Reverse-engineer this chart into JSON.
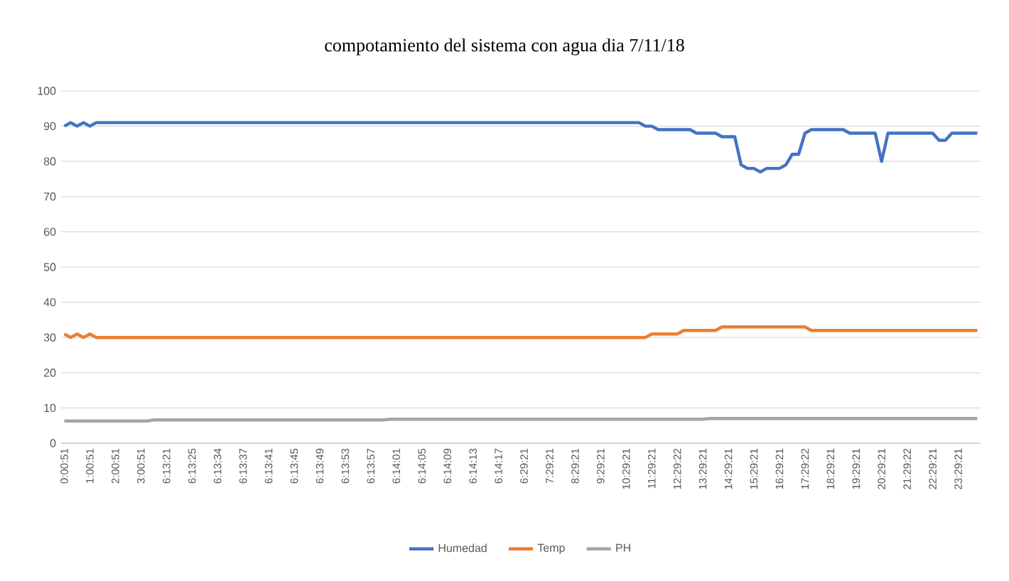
{
  "chart_data": {
    "type": "line",
    "title": "compotamiento del sistema con agua dia 7/11/18",
    "categories": [
      "0:00:51",
      null,
      null,
      null,
      "1:00:51",
      null,
      null,
      null,
      "2:00:51",
      null,
      null,
      null,
      "3:00:51",
      null,
      null,
      null,
      "6:13:21",
      null,
      null,
      null,
      "6:13:25",
      null,
      null,
      null,
      "6:13:34",
      null,
      null,
      null,
      "6:13:37",
      null,
      null,
      null,
      "6:13:41",
      null,
      null,
      null,
      "6:13:45",
      null,
      null,
      null,
      "6:13:49",
      null,
      null,
      null,
      "6:13:53",
      null,
      null,
      null,
      "6:13:57",
      null,
      null,
      null,
      "6:14:01",
      null,
      null,
      null,
      "6:14:05",
      null,
      null,
      null,
      "6:14:09",
      null,
      null,
      null,
      "6:14:13",
      null,
      null,
      null,
      "6:14:17",
      null,
      null,
      null,
      "6:29:21",
      null,
      null,
      null,
      "7:29:21",
      null,
      null,
      null,
      "8:29:21",
      null,
      null,
      null,
      "9:29:21",
      null,
      null,
      null,
      "10:29:21",
      null,
      null,
      null,
      "11:29:21",
      null,
      null,
      null,
      "12:29:22",
      null,
      null,
      null,
      "13:29:21",
      null,
      null,
      null,
      "14:29:21",
      null,
      null,
      null,
      "15:29:21",
      null,
      null,
      null,
      "16:29:21",
      null,
      null,
      null,
      "17:29:22",
      null,
      null,
      null,
      "18:29:21",
      null,
      null,
      null,
      "19:29:21",
      null,
      null,
      null,
      "20:29:21",
      null,
      null,
      null,
      "21:29:22",
      null,
      null,
      null,
      "22:29:21",
      null,
      null,
      null,
      "23:29:21",
      null,
      null,
      null
    ],
    "series": [
      {
        "name": "Humedad",
        "color": "#4472c4",
        "values": [
          90,
          91,
          90,
          91,
          90,
          91,
          91,
          91,
          91,
          91,
          91,
          91,
          91,
          91,
          91,
          91,
          91,
          91,
          91,
          91,
          91,
          91,
          91,
          91,
          91,
          91,
          91,
          91,
          91,
          91,
          91,
          91,
          91,
          91,
          91,
          91,
          91,
          91,
          91,
          91,
          91,
          91,
          91,
          91,
          91,
          91,
          91,
          91,
          91,
          91,
          91,
          91,
          91,
          91,
          91,
          91,
          91,
          91,
          91,
          91,
          91,
          91,
          91,
          91,
          91,
          91,
          91,
          91,
          91,
          91,
          91,
          91,
          91,
          91,
          91,
          91,
          91,
          91,
          91,
          91,
          91,
          91,
          91,
          91,
          91,
          91,
          91,
          91,
          91,
          91,
          91,
          90,
          90,
          89,
          89,
          89,
          89,
          89,
          89,
          88,
          88,
          88,
          88,
          87,
          87,
          87,
          79,
          78,
          78,
          77,
          78,
          78,
          78,
          79,
          82,
          82,
          88,
          89,
          89,
          89,
          89,
          89,
          89,
          88,
          88,
          88,
          88,
          88,
          80,
          88,
          88,
          88,
          88,
          88,
          88,
          88,
          88,
          86,
          86,
          88,
          88,
          88,
          88,
          88
        ]
      },
      {
        "name": "Temp",
        "color": "#ed7d31",
        "values": [
          31,
          30,
          31,
          30,
          31,
          30,
          30,
          30,
          30,
          30,
          30,
          30,
          30,
          30,
          30,
          30,
          30,
          30,
          30,
          30,
          30,
          30,
          30,
          30,
          30,
          30,
          30,
          30,
          30,
          30,
          30,
          30,
          30,
          30,
          30,
          30,
          30,
          30,
          30,
          30,
          30,
          30,
          30,
          30,
          30,
          30,
          30,
          30,
          30,
          30,
          30,
          30,
          30,
          30,
          30,
          30,
          30,
          30,
          30,
          30,
          30,
          30,
          30,
          30,
          30,
          30,
          30,
          30,
          30,
          30,
          30,
          30,
          30,
          30,
          30,
          30,
          30,
          30,
          30,
          30,
          30,
          30,
          30,
          30,
          30,
          30,
          30,
          30,
          30,
          30,
          30,
          30,
          31,
          31,
          31,
          31,
          31,
          32,
          32,
          32,
          32,
          32,
          32,
          33,
          33,
          33,
          33,
          33,
          33,
          33,
          33,
          33,
          33,
          33,
          33,
          33,
          33,
          32,
          32,
          32,
          32,
          32,
          32,
          32,
          32,
          32,
          32,
          32,
          32,
          32,
          32,
          32,
          32,
          32,
          32,
          32,
          32,
          32,
          32,
          32,
          32,
          32,
          32,
          32
        ]
      },
      {
        "name": "PH",
        "color": "#a5a5a5",
        "values": [
          6.3,
          6.3,
          6.3,
          6.3,
          6.3,
          6.3,
          6.3,
          6.3,
          6.3,
          6.3,
          6.3,
          6.3,
          6.3,
          6.3,
          6.6,
          6.6,
          6.6,
          6.6,
          6.6,
          6.6,
          6.6,
          6.6,
          6.6,
          6.6,
          6.6,
          6.6,
          6.6,
          6.6,
          6.6,
          6.6,
          6.6,
          6.6,
          6.6,
          6.6,
          6.6,
          6.6,
          6.6,
          6.6,
          6.6,
          6.6,
          6.6,
          6.6,
          6.6,
          6.6,
          6.6,
          6.6,
          6.6,
          6.6,
          6.6,
          6.6,
          6.6,
          6.8,
          6.8,
          6.8,
          6.8,
          6.8,
          6.8,
          6.8,
          6.8,
          6.8,
          6.8,
          6.8,
          6.8,
          6.8,
          6.8,
          6.8,
          6.8,
          6.8,
          6.8,
          6.8,
          6.8,
          6.8,
          6.8,
          6.8,
          6.8,
          6.8,
          6.8,
          6.8,
          6.8,
          6.8,
          6.8,
          6.8,
          6.8,
          6.8,
          6.8,
          6.8,
          6.8,
          6.8,
          6.8,
          6.8,
          6.8,
          6.8,
          6.8,
          6.8,
          6.8,
          6.8,
          6.8,
          6.8,
          6.8,
          6.8,
          6.8,
          7,
          7,
          7,
          7,
          7,
          7,
          7,
          7,
          7,
          7,
          7,
          7,
          7,
          7,
          7,
          7,
          7,
          7,
          7,
          7,
          7,
          7,
          7,
          7,
          7,
          7,
          7,
          7,
          7,
          7,
          7,
          7,
          7,
          7,
          7,
          7,
          7,
          7,
          7,
          7,
          7,
          7,
          7
        ]
      }
    ],
    "ylim": [
      0,
      100
    ],
    "yticks": [
      0,
      10,
      20,
      30,
      40,
      50,
      60,
      70,
      80,
      90,
      100
    ],
    "grid": "y",
    "legend": "bottom",
    "marker": "none",
    "line_style": "solid"
  }
}
